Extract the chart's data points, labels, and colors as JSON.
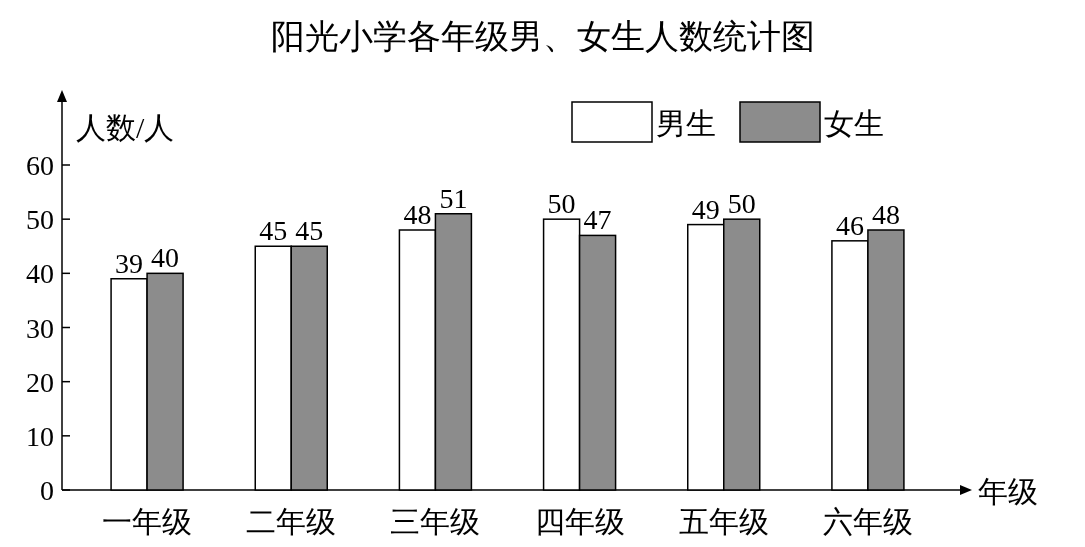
{
  "chart_data": {
    "type": "bar",
    "title": "阳光小学各年级男、女生人数统计图",
    "xlabel": "年级",
    "ylabel": "人数/人",
    "categories": [
      "一年级",
      "二年级",
      "三年级",
      "四年级",
      "五年级",
      "六年级"
    ],
    "series": [
      {
        "name": "男生",
        "color": "#ffffff",
        "values": [
          39,
          45,
          48,
          50,
          49,
          46
        ]
      },
      {
        "name": "女生",
        "color": "#8c8c8c",
        "values": [
          40,
          45,
          51,
          47,
          50,
          48
        ]
      }
    ],
    "ylim": [
      0,
      72
    ],
    "yticks": [
      0,
      10,
      20,
      30,
      40,
      50,
      60
    ],
    "data_labels": true,
    "legend": "top right"
  }
}
